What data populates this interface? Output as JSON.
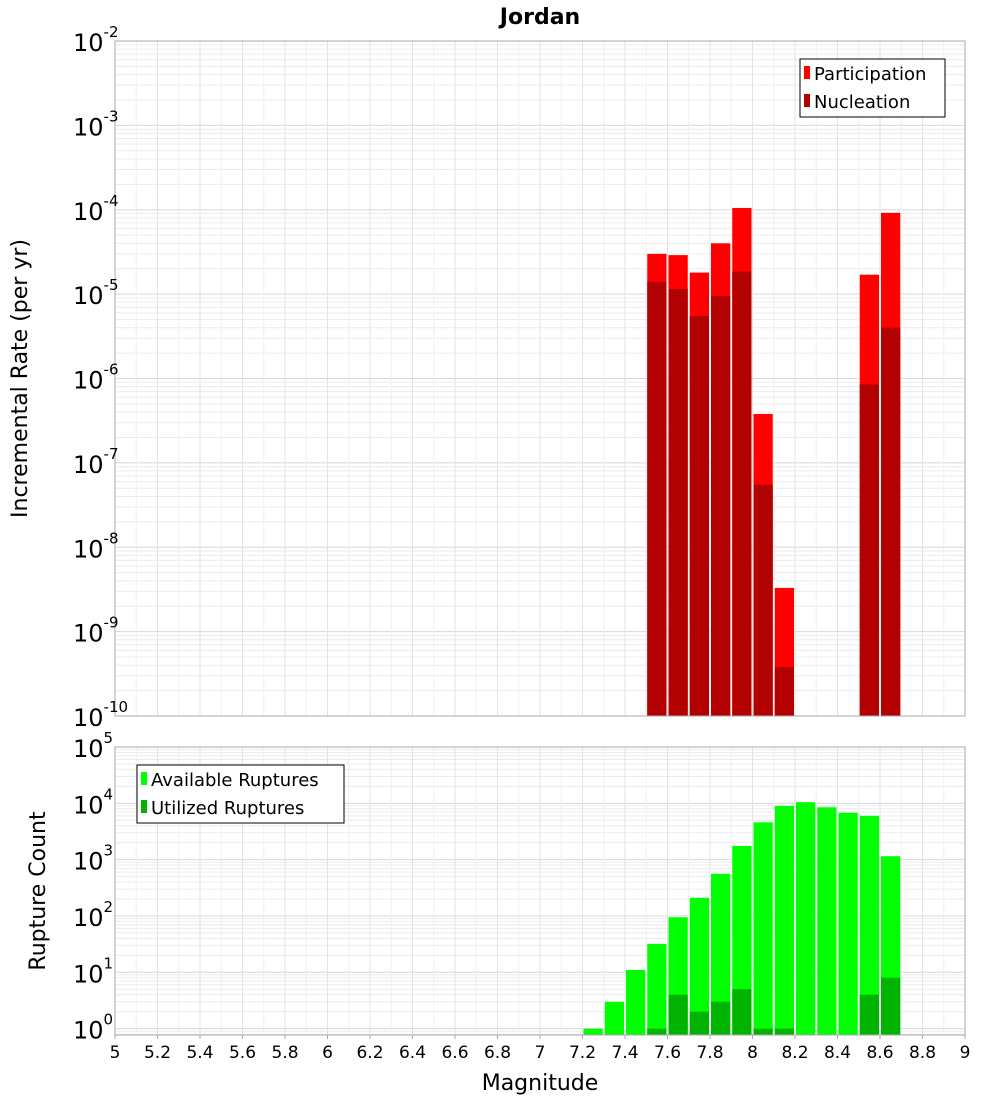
{
  "chart_data": [
    {
      "type": "bar",
      "title": "Jordan",
      "ylabel": "Incremental Rate (per yr)",
      "xlabel": "",
      "yscale": "log",
      "ylim": [
        1e-10,
        0.01
      ],
      "xlim": [
        5,
        9
      ],
      "bin_width": 0.1,
      "y_ticks": [
        {
          "base": "10",
          "exp": "-10"
        },
        {
          "base": "10",
          "exp": "-9"
        },
        {
          "base": "10",
          "exp": "-8"
        },
        {
          "base": "10",
          "exp": "-7"
        },
        {
          "base": "10",
          "exp": "-6"
        },
        {
          "base": "10",
          "exp": "-5"
        },
        {
          "base": "10",
          "exp": "-4"
        },
        {
          "base": "10",
          "exp": "-3"
        },
        {
          "base": "10",
          "exp": "-2"
        }
      ],
      "legend_position": "top-right",
      "categories": [
        7.55,
        7.65,
        7.75,
        7.85,
        7.95,
        8.05,
        8.15,
        8.55,
        8.65
      ],
      "series": [
        {
          "name": "Participation",
          "color": "#ff0000",
          "values": [
            3e-05,
            2.9e-05,
            1.8e-05,
            4e-05,
            0.000105,
            3.8e-07,
            3.3e-09,
            1.7e-05,
            9.2e-05
          ]
        },
        {
          "name": "Nucleation",
          "color": "#b30000",
          "values": [
            1.4e-05,
            1.15e-05,
            5.5e-06,
            9.5e-06,
            1.85e-05,
            5.5e-08,
            3.8e-10,
            8.5e-07,
            4e-06
          ]
        }
      ]
    },
    {
      "type": "bar",
      "title": "",
      "ylabel": "Rupture Count",
      "xlabel": "Magnitude",
      "yscale": "log",
      "ylim": [
        0.77,
        100000.0
      ],
      "xlim": [
        5,
        9
      ],
      "bin_width": 0.1,
      "y_ticks": [
        {
          "base": "10",
          "exp": "0",
          "value": 1
        },
        {
          "base": "10",
          "exp": "1",
          "value": 10
        },
        {
          "base": "10",
          "exp": "2",
          "value": 100
        },
        {
          "base": "10",
          "exp": "3",
          "value": 1000
        },
        {
          "base": "10",
          "exp": "4",
          "value": 10000
        },
        {
          "base": "10",
          "exp": "5",
          "value": 100000
        }
      ],
      "x_tick_labels": [
        "5",
        "5.2",
        "5.4",
        "5.6",
        "5.8",
        "6",
        "6.2",
        "6.4",
        "6.6",
        "6.8",
        "7",
        "7.2",
        "7.4",
        "7.6",
        "7.8",
        "8",
        "8.2",
        "8.4",
        "8.6",
        "8.8",
        "9"
      ],
      "legend_position": "top-left",
      "categories": [
        7.25,
        7.35,
        7.45,
        7.55,
        7.65,
        7.75,
        7.85,
        7.95,
        8.05,
        8.15,
        8.25,
        8.35,
        8.45,
        8.55,
        8.65
      ],
      "series": [
        {
          "name": "Available Ruptures",
          "color": "#00ff00",
          "values": [
            1,
            3,
            11,
            32,
            95,
            210,
            560,
            1750,
            4600,
            9000,
            10500,
            8500,
            6800,
            6000,
            1150
          ]
        },
        {
          "name": "Utilized Ruptures",
          "color": "#00b300",
          "values": [
            0,
            0,
            0,
            1,
            4,
            2,
            3,
            5,
            1,
            1,
            0,
            0,
            0,
            4,
            8
          ]
        }
      ]
    }
  ]
}
